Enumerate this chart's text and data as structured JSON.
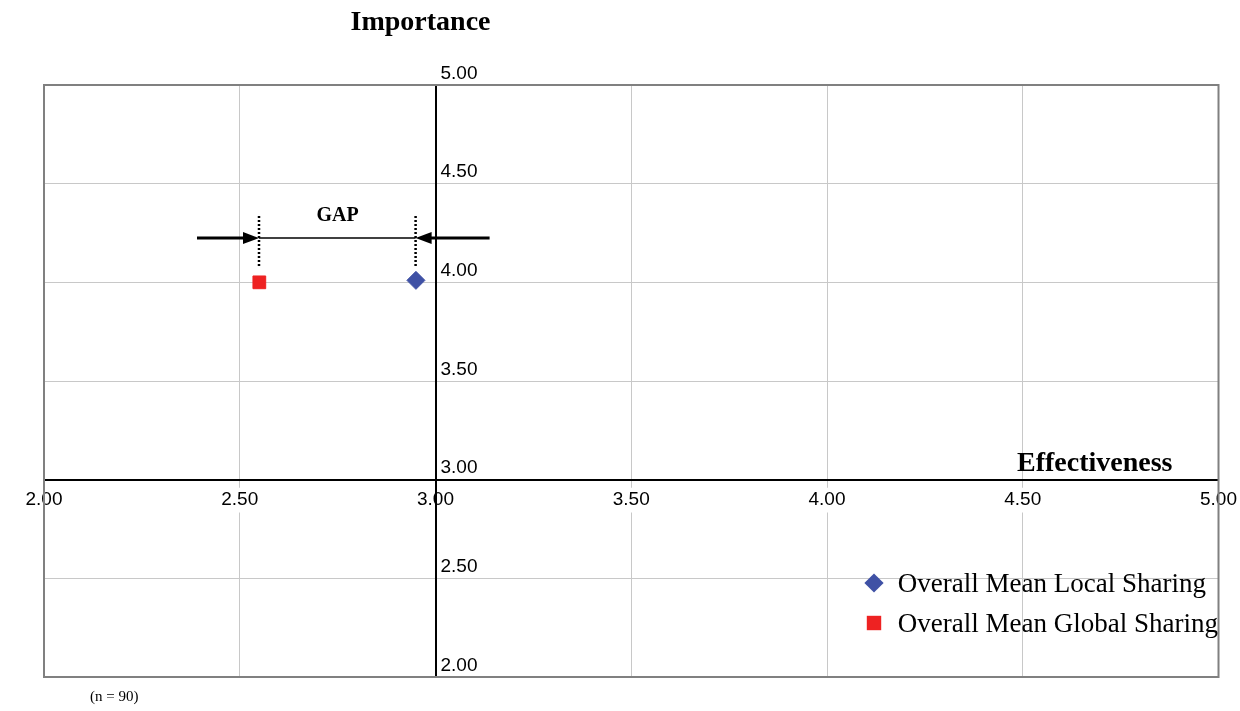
{
  "chart_data": {
    "type": "scatter",
    "xlabel": "Effectiveness",
    "ylabel": "Importance",
    "series": [
      {
        "name": "Overall Mean Local Sharing",
        "color": "#3f51a5",
        "marker": "diamond",
        "x": [
          2.95
        ],
        "values": [
          4.01
        ]
      },
      {
        "name": "Overall Mean Global Sharing",
        "color": "#ee2222",
        "marker": "square",
        "x": [
          2.55
        ],
        "values": [
          4.0
        ]
      }
    ],
    "xlim": [
      2,
      5
    ],
    "ylim": [
      2,
      5
    ],
    "xticks": [
      {
        "value": 2,
        "label": "2.00"
      },
      {
        "value": 2.5,
        "label": "2.50"
      },
      {
        "value": 3,
        "label": "3.00"
      },
      {
        "value": 3.5,
        "label": "3.50"
      },
      {
        "value": 4,
        "label": "4.00"
      },
      {
        "value": 4.5,
        "label": "4.50"
      },
      {
        "value": 5,
        "label": "5.00"
      }
    ],
    "yticks": [
      {
        "value": 2,
        "label": "2.00"
      },
      {
        "value": 2.5,
        "label": "2.50"
      },
      {
        "value": 3,
        "label": "3.00"
      },
      {
        "value": 3.5,
        "label": "3.50"
      },
      {
        "value": 4,
        "label": "4.00"
      },
      {
        "value": 4.5,
        "label": "4.50"
      },
      {
        "value": 5,
        "label": "5.00"
      }
    ],
    "grid": true,
    "legend": "bottom right",
    "annotations": [
      "GAP",
      "(n = 90)"
    ]
  }
}
